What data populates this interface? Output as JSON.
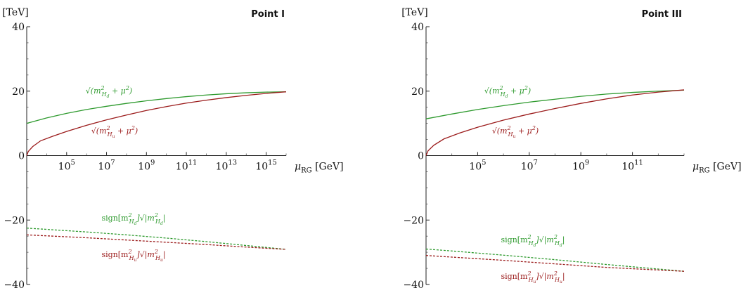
{
  "chart_data": [
    {
      "type": "line",
      "title": "Point I",
      "ylabel": "[TeV]",
      "xlabel": "μ_RG [GeV]",
      "xlabel_main": "μ",
      "xlabel_sub": "RG",
      "xlabel_unit": "[GeV]",
      "xscale": "log",
      "xlim": [
        1000,
        1e+16
      ],
      "ylim": [
        -40,
        40
      ],
      "xticks": [
        {
          "base": "10",
          "exp": "5",
          "value": 100000.0
        },
        {
          "base": "10",
          "exp": "7",
          "value": 10000000.0
        },
        {
          "base": "10",
          "exp": "9",
          "value": 1000000000.0
        },
        {
          "base": "10",
          "exp": "11",
          "value": 100000000000.0
        },
        {
          "base": "10",
          "exp": "13",
          "value": 10000000000000.0
        },
        {
          "base": "10",
          "exp": "15",
          "value": 1000000000000000.0
        }
      ],
      "yticks": [
        {
          "label": "40",
          "value": 40
        },
        {
          "label": "20",
          "value": 20
        },
        {
          "label": "0",
          "value": 0
        },
        {
          "label": "−20",
          "value": -20
        },
        {
          "label": "−40",
          "value": -40
        }
      ],
      "series": [
        {
          "id": "sqrt_Hd",
          "color": "#2e9a2e",
          "dash": false,
          "label_parts": [
            "√(m",
            "2",
            "H",
            "d",
            " + μ",
            "2",
            ")"
          ],
          "x": [
            1000,
            10000.0,
            100000.0,
            1000000.0,
            10000000.0,
            100000000.0,
            1000000000.0,
            10000000000.0,
            100000000000.0,
            1000000000000.0,
            10000000000000.0,
            100000000000000.0,
            1000000000000000.0,
            1e+16
          ],
          "y": [
            10.0,
            11.7,
            13.1,
            14.3,
            15.3,
            16.2,
            17.0,
            17.7,
            18.3,
            18.8,
            19.2,
            19.5,
            19.7,
            19.8
          ]
        },
        {
          "id": "sqrt_Hu",
          "color": "#9b1b1b",
          "dash": false,
          "label_parts": [
            "√(m",
            "2",
            "H",
            "u",
            " + μ",
            "2",
            ")"
          ],
          "x": [
            1000,
            1200.0,
            2000.0,
            5000.0,
            20000.0,
            100000.0,
            1000000.0,
            10000000.0,
            100000000.0,
            1000000000.0,
            10000000000.0,
            100000000000.0,
            1000000000000.0,
            10000000000000.0,
            100000000000000.0,
            1000000000000000.0,
            1e+16
          ],
          "y": [
            0.0,
            1.3,
            2.8,
            4.6,
            6.0,
            7.5,
            9.4,
            11.1,
            12.6,
            14.0,
            15.2,
            16.3,
            17.2,
            18.0,
            18.7,
            19.3,
            19.8
          ]
        },
        {
          "id": "sign_Hd",
          "color": "#2e9a2e",
          "dash": true,
          "label_parts": [
            "sign[m",
            "2",
            "H",
            "d",
            "]√|m",
            "2",
            "H",
            "d",
            "|"
          ],
          "x": [
            1000,
            10000.0,
            1000000.0,
            100000000.0,
            10000000000.0,
            1000000000000.0,
            100000000000000.0,
            1e+16
          ],
          "y": [
            -22.5,
            -22.9,
            -23.7,
            -24.6,
            -25.6,
            -26.7,
            -27.9,
            -29.1
          ]
        },
        {
          "id": "sign_Hu",
          "color": "#9b1b1b",
          "dash": true,
          "label_parts": [
            "sign[m",
            "2",
            "H",
            "u",
            "]√|m",
            "2",
            "H",
            "u",
            "|"
          ],
          "x": [
            1000,
            10000.0,
            1000000.0,
            100000000.0,
            10000000000.0,
            1000000000000.0,
            100000000000000.0,
            1e+16
          ],
          "y": [
            -24.6,
            -24.9,
            -25.5,
            -26.2,
            -26.9,
            -27.6,
            -28.4,
            -29.1
          ]
        }
      ],
      "grid": false,
      "legend": "none"
    },
    {
      "type": "line",
      "title": "Point III",
      "ylabel": "[TeV]",
      "xlabel": "μ_RG [GeV]",
      "xlabel_main": "μ",
      "xlabel_sub": "RG",
      "xlabel_unit": "[GeV]",
      "xscale": "log",
      "xlim": [
        1000,
        10000000000000.0
      ],
      "ylim": [
        -40,
        40
      ],
      "xticks": [
        {
          "base": "10",
          "exp": "5",
          "value": 100000.0
        },
        {
          "base": "10",
          "exp": "7",
          "value": 10000000.0
        },
        {
          "base": "10",
          "exp": "9",
          "value": 1000000000.0
        },
        {
          "base": "10",
          "exp": "11",
          "value": 100000000000.0
        }
      ],
      "yticks": [
        {
          "label": "40",
          "value": 40
        },
        {
          "label": "20",
          "value": 20
        },
        {
          "label": "0",
          "value": 0
        },
        {
          "label": "−20",
          "value": -20
        },
        {
          "label": "−40",
          "value": -40
        }
      ],
      "series": [
        {
          "id": "sqrt_Hd",
          "color": "#2e9a2e",
          "dash": false,
          "label_parts": [
            "√(m",
            "2",
            "H",
            "d",
            " + μ",
            "2",
            ")"
          ],
          "x": [
            1000,
            10000.0,
            100000.0,
            1000000.0,
            10000000.0,
            100000000.0,
            1000000000.0,
            10000000000.0,
            100000000000.0,
            1000000000000.0,
            10000000000000.0
          ],
          "y": [
            11.4,
            12.9,
            14.3,
            15.5,
            16.6,
            17.5,
            18.4,
            19.1,
            19.6,
            20.0,
            20.3
          ]
        },
        {
          "id": "sqrt_Hu",
          "color": "#9b1b1b",
          "dash": false,
          "label_parts": [
            "√(m",
            "2",
            "H",
            "u",
            " + μ",
            "2",
            ")"
          ],
          "x": [
            1000,
            1200.0,
            2000.0,
            5000.0,
            20000.0,
            100000.0,
            1000000.0,
            10000000.0,
            100000000.0,
            1000000000.0,
            10000000000.0,
            100000000000.0,
            1000000000000.0,
            10000000000000.0
          ],
          "y": [
            0.0,
            1.5,
            3.2,
            5.2,
            7.0,
            8.8,
            11.0,
            12.9,
            14.6,
            16.2,
            17.6,
            18.8,
            19.7,
            20.4
          ]
        },
        {
          "id": "sign_Hd",
          "color": "#2e9a2e",
          "dash": true,
          "label_parts": [
            "sign[m",
            "2",
            "H",
            "d",
            "]√|m",
            "2",
            "H",
            "d",
            "|"
          ],
          "x": [
            1000,
            10000.0,
            1000000.0,
            100000000.0,
            10000000000.0,
            1000000000000.0,
            10000000000000.0
          ],
          "y": [
            -29.0,
            -29.6,
            -30.9,
            -32.3,
            -33.8,
            -35.2,
            -35.9
          ]
        },
        {
          "id": "sign_Hu",
          "color": "#9b1b1b",
          "dash": true,
          "label_parts": [
            "sign[m",
            "2",
            "H",
            "u",
            "]√|m",
            "2",
            "H",
            "u",
            "|"
          ],
          "x": [
            1000,
            10000.0,
            1000000.0,
            100000000.0,
            10000000000.0,
            1000000000000.0,
            10000000000000.0
          ],
          "y": [
            -31.0,
            -31.5,
            -32.5,
            -33.6,
            -34.7,
            -35.5,
            -35.9
          ]
        }
      ],
      "grid": false,
      "legend": "none"
    }
  ]
}
